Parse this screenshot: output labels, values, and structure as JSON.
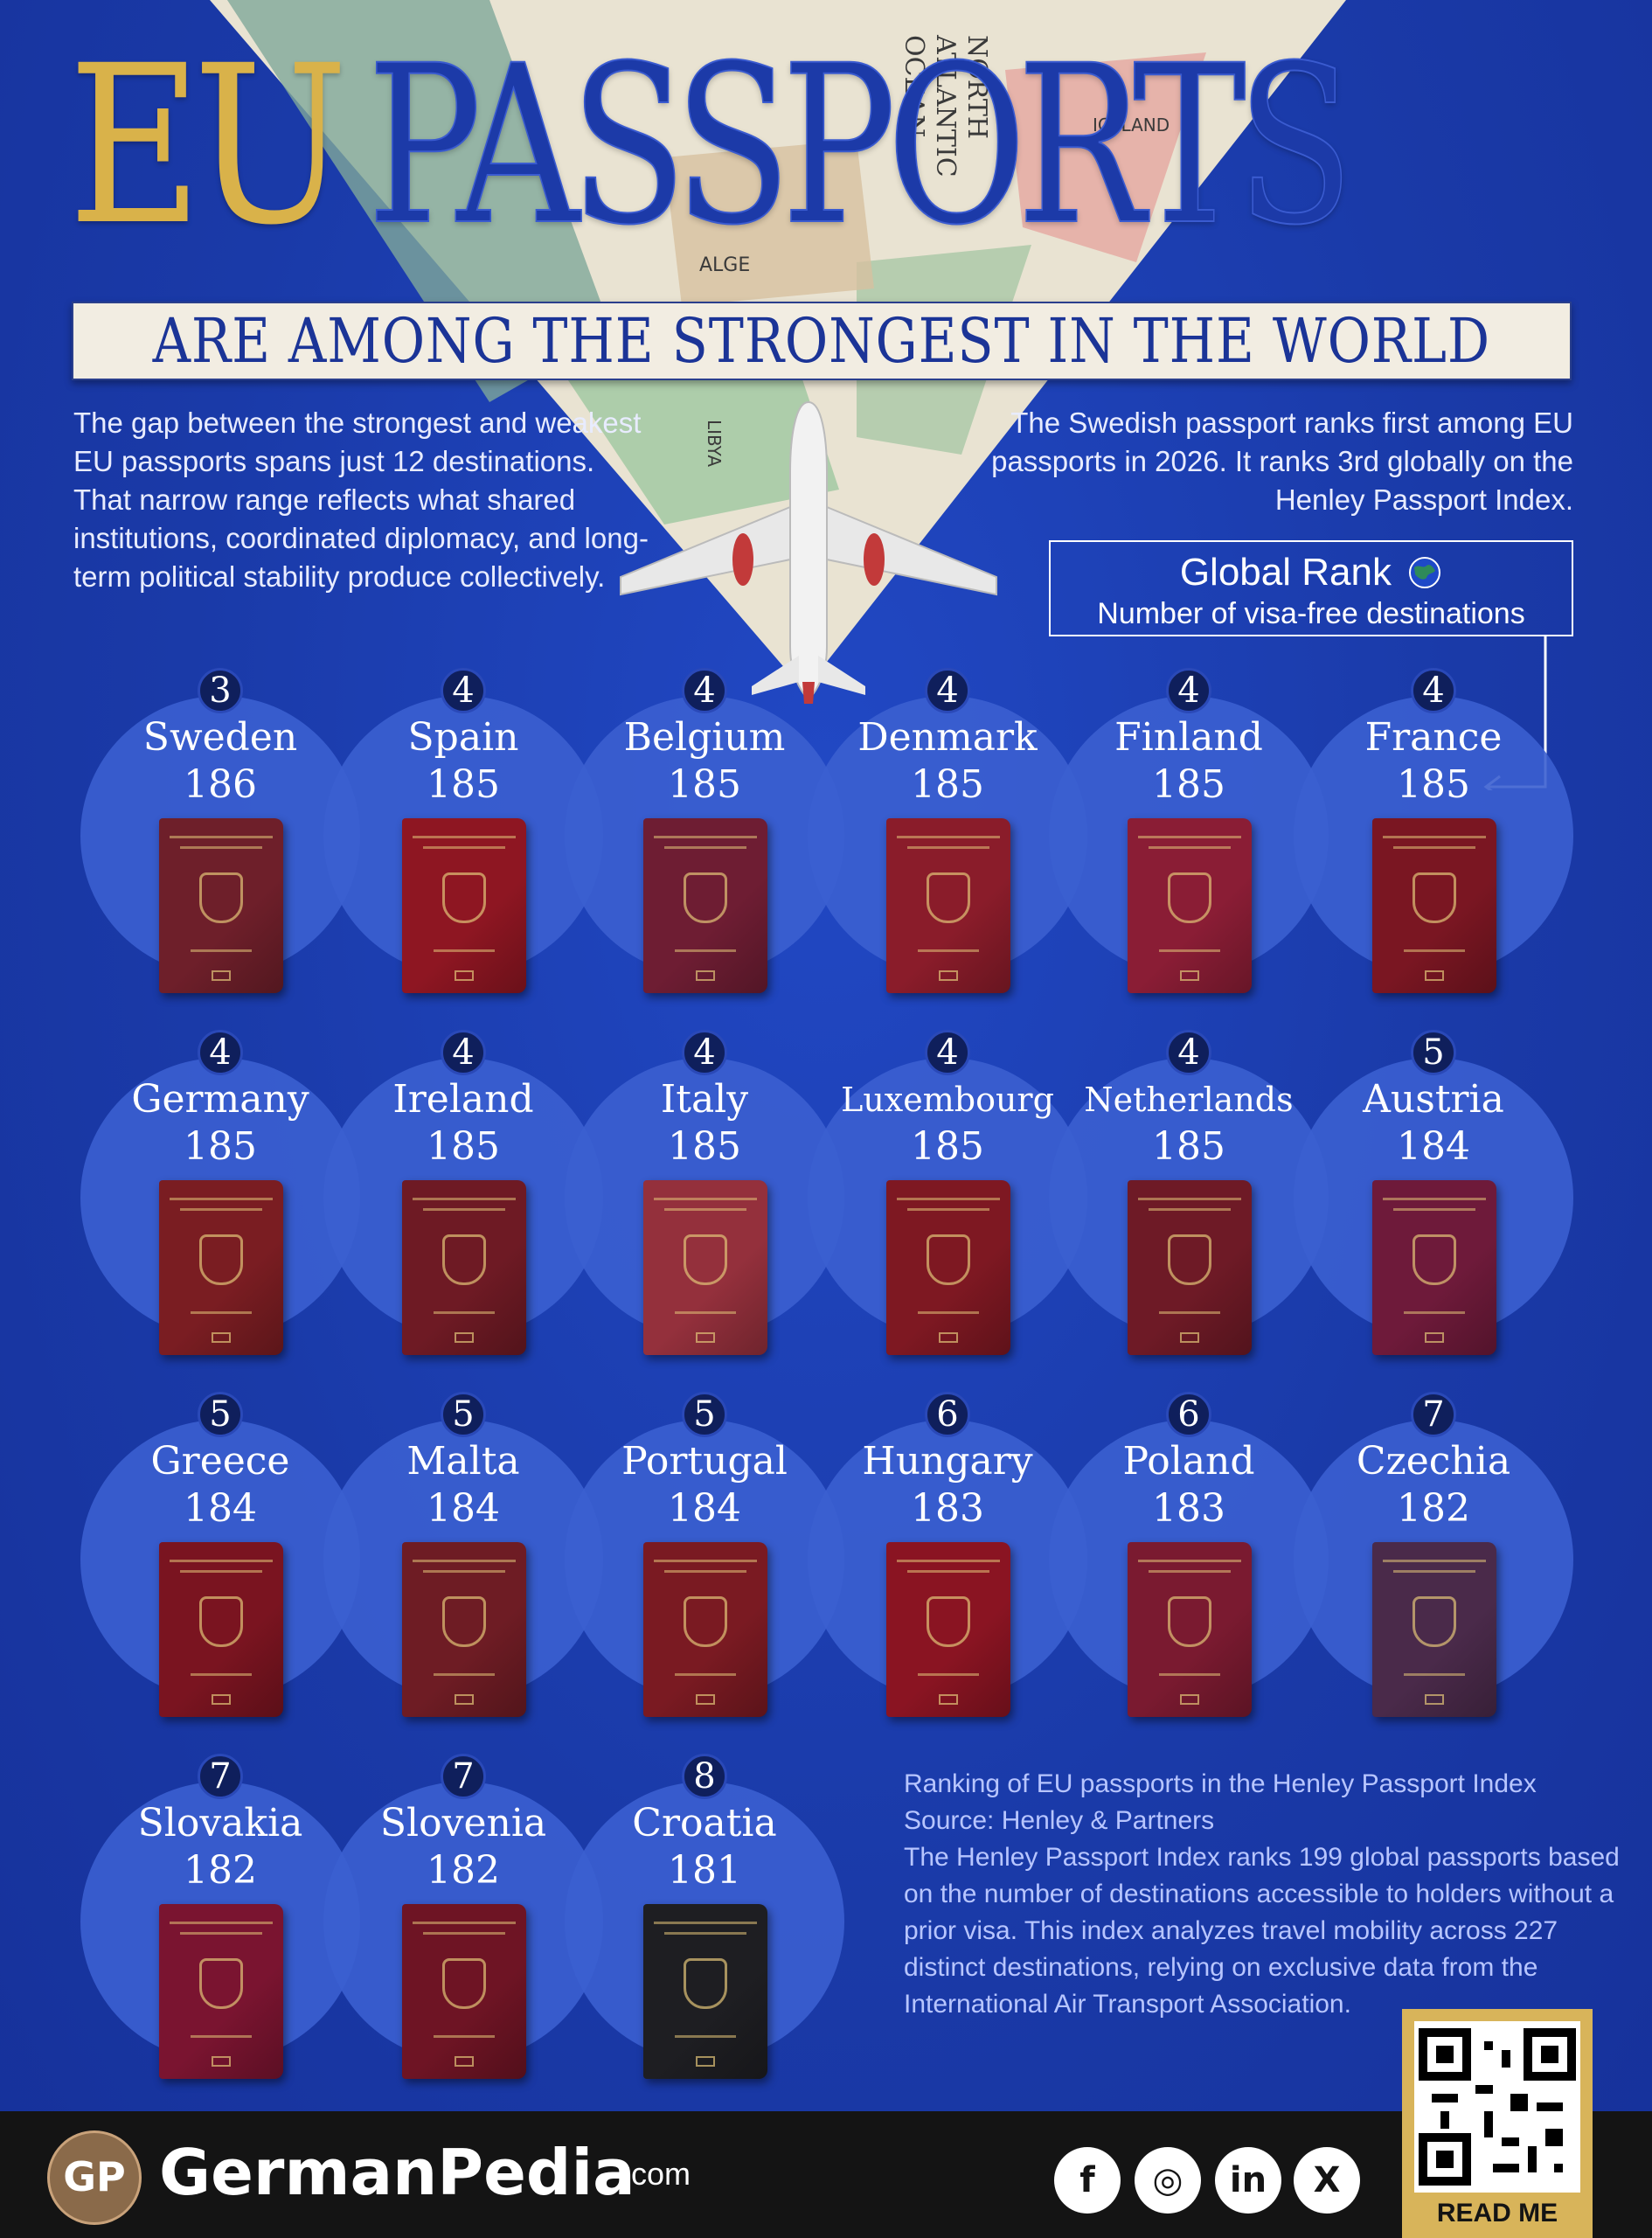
{
  "title": {
    "part1": "EU",
    "part2": "PASSPORTS",
    "subtitle": "ARE AMONG THE STRONGEST IN THE WORLD"
  },
  "intro_left": "The gap between the strongest and weakest EU passports spans just 12 destinations. That narrow range reflects what shared institutions, coordinated diplomacy, and long-term political stability produce collectively.",
  "intro_right": "The Swedish passport ranks first among EU passports in 2026. It ranks 3rd globally on the Henley Passport Index.",
  "legend": {
    "rank_label": "Global Rank",
    "rank_icon": "globe-icon",
    "dest_label": "Number of visa-free destinations"
  },
  "map_labels": [
    "NORTH",
    "ATLANTIC",
    "OCEAN",
    "ICELAND",
    "ALGE",
    "LIBYA"
  ],
  "countries": [
    {
      "name": "Sweden",
      "rank": "3",
      "destinations": "186",
      "cover": "#6e1f2a"
    },
    {
      "name": "Spain",
      "rank": "4",
      "destinations": "185",
      "cover": "#8e1622"
    },
    {
      "name": "Belgium",
      "rank": "4",
      "destinations": "185",
      "cover": "#6e1d33"
    },
    {
      "name": "Denmark",
      "rank": "4",
      "destinations": "185",
      "cover": "#8a1c2a"
    },
    {
      "name": "Finland",
      "rank": "4",
      "destinations": "185",
      "cover": "#8a1d35"
    },
    {
      "name": "France",
      "rank": "4",
      "destinations": "185",
      "cover": "#7a1622"
    },
    {
      "name": "Germany",
      "rank": "4",
      "destinations": "185",
      "cover": "#7a1d22"
    },
    {
      "name": "Ireland",
      "rank": "4",
      "destinations": "185",
      "cover": "#6e1a24"
    },
    {
      "name": "Italy",
      "rank": "4",
      "destinations": "185",
      "cover": "#94303c"
    },
    {
      "name": "Luxembourg",
      "rank": "4",
      "destinations": "185",
      "cover": "#7e1822"
    },
    {
      "name": "Netherlands",
      "rank": "4",
      "destinations": "185",
      "cover": "#6e1a26"
    },
    {
      "name": "Austria",
      "rank": "5",
      "destinations": "184",
      "cover": "#6e1a3a"
    },
    {
      "name": "Greece",
      "rank": "5",
      "destinations": "184",
      "cover": "#7a1420"
    },
    {
      "name": "Malta",
      "rank": "5",
      "destinations": "184",
      "cover": "#6e1c24"
    },
    {
      "name": "Portugal",
      "rank": "5",
      "destinations": "184",
      "cover": "#7a1a22"
    },
    {
      "name": "Hungary",
      "rank": "6",
      "destinations": "183",
      "cover": "#8a1422"
    },
    {
      "name": "Poland",
      "rank": "6",
      "destinations": "183",
      "cover": "#7a1a30"
    },
    {
      "name": "Czechia",
      "rank": "7",
      "destinations": "182",
      "cover": "#4a2a4a"
    },
    {
      "name": "Slovakia",
      "rank": "7",
      "destinations": "182",
      "cover": "#7a1430"
    },
    {
      "name": "Slovenia",
      "rank": "7",
      "destinations": "182",
      "cover": "#6e1424"
    },
    {
      "name": "Croatia",
      "rank": "8",
      "destinations": "181",
      "cover": "#1e1e22"
    }
  ],
  "info": {
    "line1": "Ranking of EU passports in the Henley Passport Index",
    "line2": "Source: Henley & Partners",
    "body": "The Henley Passport Index ranks 199 global passports based on the number of destinations accessible to holders without a prior visa. This index analyzes travel mobility across 227 distinct destinations, relying on exclusive data from the International Air Transport Association."
  },
  "footer": {
    "logo_text": "GP",
    "brand": "GermanPedia",
    "brand_suffix": ".com",
    "social": [
      {
        "icon": "facebook-icon",
        "glyph": "f"
      },
      {
        "icon": "instagram-icon",
        "glyph": "◎"
      },
      {
        "icon": "linkedin-icon",
        "glyph": "in"
      },
      {
        "icon": "x-icon",
        "glyph": "X"
      }
    ],
    "qr_label": "READ ME"
  },
  "colors": {
    "background": "#1a3aa8",
    "circle": "#3b5fd0",
    "gold": "#d9b24a",
    "footer": "#141414"
  }
}
